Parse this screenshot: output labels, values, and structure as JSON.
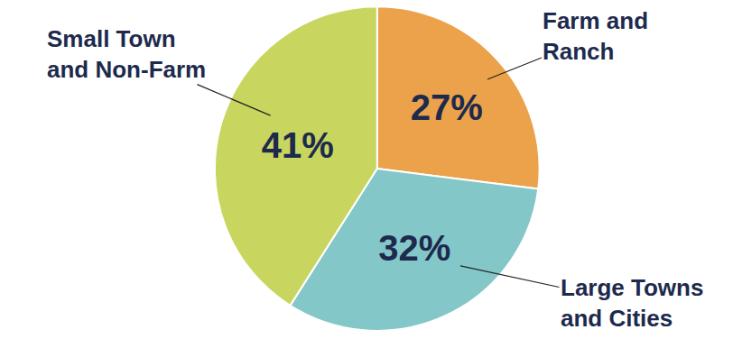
{
  "chart_data": {
    "type": "pie",
    "categories": [
      "Farm and Ranch",
      "Large Towns and Cities",
      "Small Town and Non-Farm"
    ],
    "values": [
      27,
      32,
      41
    ],
    "value_labels": [
      "27%",
      "32%",
      "41%"
    ],
    "colors": [
      "#eba24a",
      "#84c7c8",
      "#c8d65f"
    ],
    "data_labels": true
  }
}
